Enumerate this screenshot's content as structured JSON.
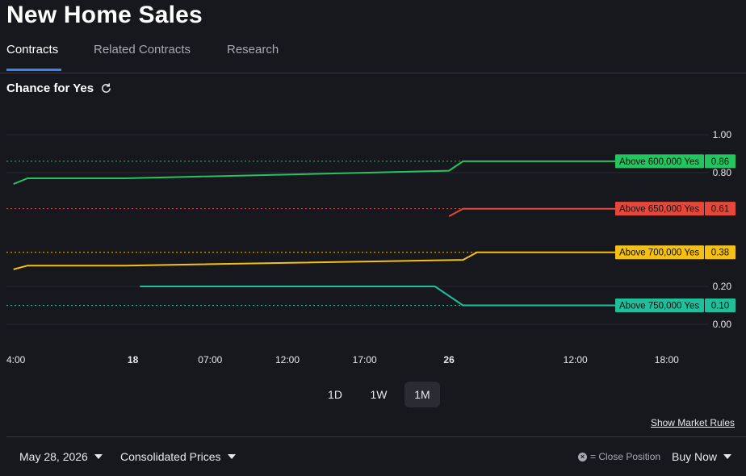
{
  "page": {
    "title": "New Home Sales"
  },
  "tabs": [
    {
      "label": "Contracts",
      "active": true
    },
    {
      "label": "Related Contracts",
      "active": false
    },
    {
      "label": "Research",
      "active": false
    }
  ],
  "chance_label": "Chance for Yes",
  "icons": {
    "refresh": "refresh-icon",
    "dropdown": "caret-down-icon",
    "close": "close-circle-icon"
  },
  "ranges": [
    {
      "label": "1D",
      "active": false
    },
    {
      "label": "1W",
      "active": false
    },
    {
      "label": "1M",
      "active": true
    }
  ],
  "show_rules": "Show Market Rules",
  "footer": {
    "date": "May 28, 2026",
    "prices": "Consolidated Prices",
    "close_position": "= Close Position",
    "buy_now": "Buy Now"
  },
  "chart_data": {
    "type": "line",
    "ylim": [
      0,
      1
    ],
    "y_ticks": [
      {
        "value": 1.0,
        "label": "1.00"
      },
      {
        "value": 0.8,
        "label": "0.80"
      },
      {
        "value": 0.2,
        "label": "0.20"
      },
      {
        "value": 0.0,
        "label": "0.00"
      }
    ],
    "x_ticks": [
      "4:00",
      "18",
      "07:00",
      "12:00",
      "17:00",
      "26",
      "12:00",
      "18:00"
    ],
    "x_bold": [
      false,
      true,
      false,
      false,
      false,
      true,
      false,
      false
    ],
    "x_tick_pos": [
      0,
      0.18,
      0.29,
      0.4,
      0.51,
      0.63,
      0.81,
      0.94
    ],
    "grid": true,
    "series": [
      {
        "name": "Above 600,000 Yes",
        "color": "#22c55e",
        "last_label": "0.86",
        "last": 0.86,
        "points": [
          [
            0.01,
            0.74
          ],
          [
            0.03,
            0.77
          ],
          [
            0.17,
            0.77
          ],
          [
            0.63,
            0.81
          ],
          [
            0.65,
            0.86
          ],
          [
            0.89,
            0.86
          ]
        ]
      },
      {
        "name": "Above 650,000 Yes",
        "color": "#e5483a",
        "last_label": "0.61",
        "last": 0.61,
        "points": [
          [
            0.63,
            0.57
          ],
          [
            0.65,
            0.61
          ],
          [
            0.89,
            0.61
          ]
        ]
      },
      {
        "name": "Above 700,000 Yes",
        "color": "#f5c013",
        "last_label": "0.38",
        "last": 0.38,
        "points": [
          [
            0.01,
            0.29
          ],
          [
            0.03,
            0.31
          ],
          [
            0.17,
            0.31
          ],
          [
            0.65,
            0.34
          ],
          [
            0.67,
            0.38
          ],
          [
            0.89,
            0.38
          ]
        ]
      },
      {
        "name": "Above 750,000 Yes",
        "color": "#1fbf9c",
        "last_label": "0.10",
        "last": 0.1,
        "points": [
          [
            0.19,
            0.2
          ],
          [
            0.61,
            0.2
          ],
          [
            0.65,
            0.1
          ],
          [
            0.89,
            0.1
          ]
        ]
      }
    ]
  }
}
